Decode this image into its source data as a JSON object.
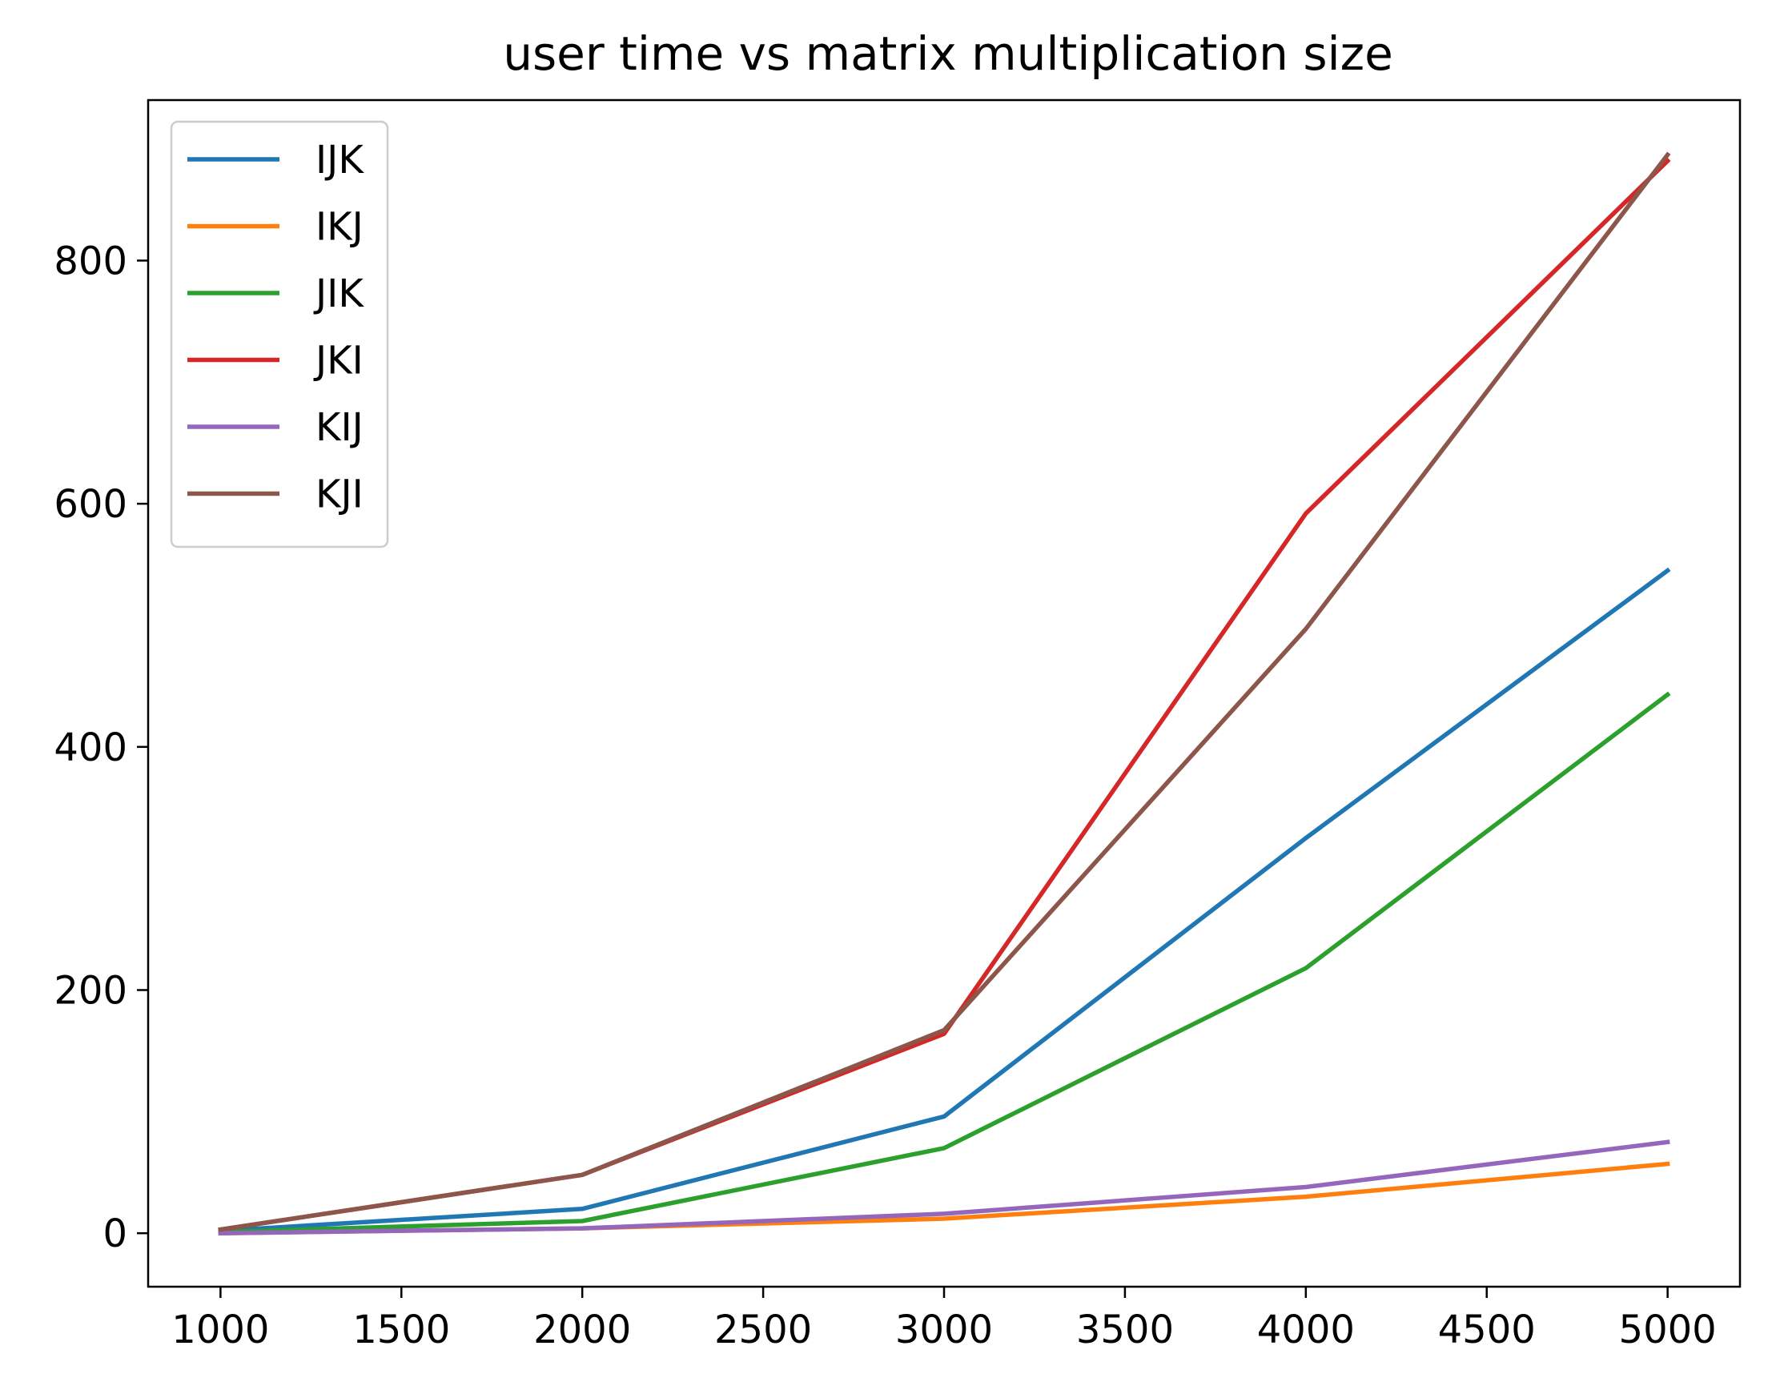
{
  "chart_data": {
    "type": "line",
    "title": "user time vs matrix multiplication size",
    "xlabel": "",
    "ylabel": "",
    "x": [
      1000,
      2000,
      3000,
      4000,
      5000
    ],
    "xlim": [
      800,
      5200
    ],
    "ylim": [
      -44,
      932
    ],
    "xticks": [
      1000,
      1500,
      2000,
      2500,
      3000,
      3500,
      4000,
      4500,
      5000
    ],
    "yticks": [
      0,
      200,
      400,
      600,
      800
    ],
    "grid": false,
    "legend_position": "upper left",
    "series": [
      {
        "name": "IJK",
        "color": "#1f77b4",
        "values": [
          2,
          20,
          96,
          325,
          545
        ]
      },
      {
        "name": "IKJ",
        "color": "#ff7f0e",
        "values": [
          0,
          4,
          12,
          30,
          57
        ]
      },
      {
        "name": "JIK",
        "color": "#2ca02c",
        "values": [
          1,
          10,
          70,
          218,
          443
        ]
      },
      {
        "name": "JKI",
        "color": "#d62728",
        "values": [
          3,
          48,
          164,
          592,
          882
        ]
      },
      {
        "name": "KIJ",
        "color": "#9467bd",
        "values": [
          0,
          4,
          16,
          38,
          75
        ]
      },
      {
        "name": "KJI",
        "color": "#8c564b",
        "values": [
          3,
          48,
          167,
          497,
          887
        ]
      }
    ]
  }
}
